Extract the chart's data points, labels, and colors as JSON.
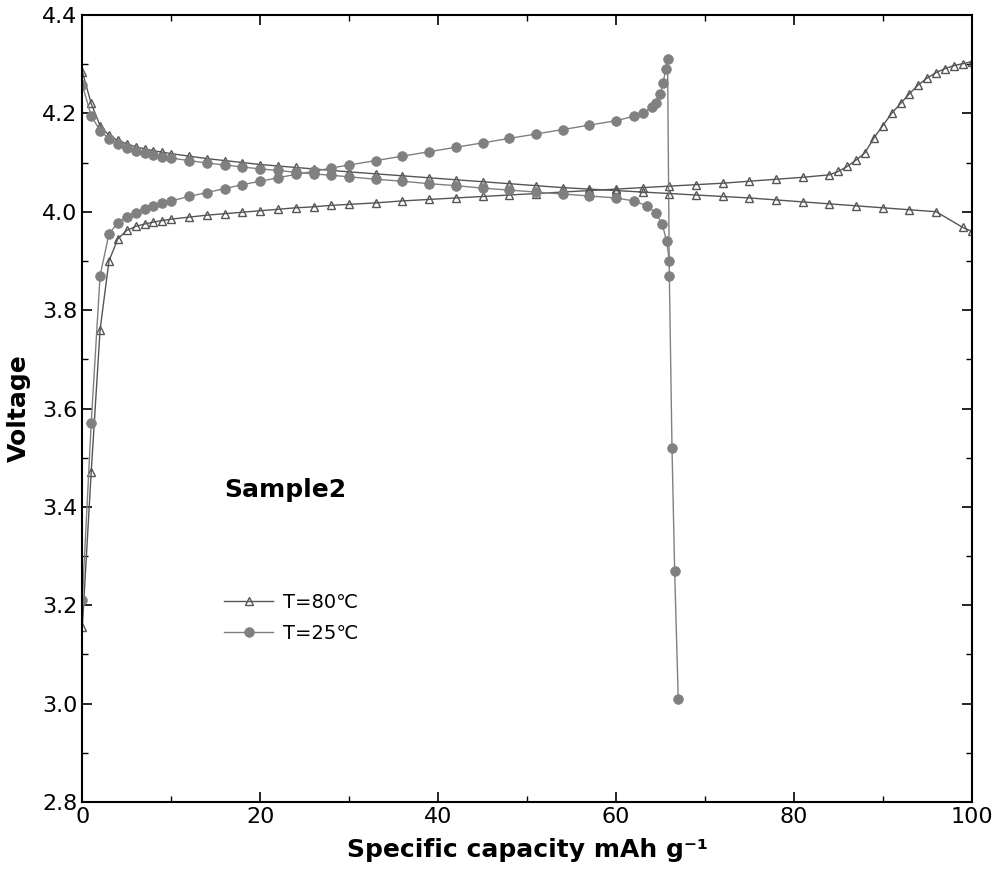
{
  "title": "Sample2",
  "xlabel": "Specific capacity mAh g⁻¹",
  "ylabel": "Voltage",
  "xlim": [
    0,
    100
  ],
  "ylim": [
    2.8,
    4.4
  ],
  "xticks": [
    0,
    20,
    40,
    60,
    80,
    100
  ],
  "yticks": [
    2.8,
    3.0,
    3.2,
    3.4,
    3.6,
    3.8,
    4.0,
    4.2,
    4.4
  ],
  "legend1": "T=80℃",
  "legend2": "T=25℃",
  "color_tri": "#555555",
  "color_circ": "#808080",
  "T80_charge_x": [
    0.0,
    1.0,
    2.0,
    3.0,
    4.0,
    5.0,
    6.0,
    7.0,
    8.0,
    9.0,
    10.0,
    12.0,
    14.0,
    16.0,
    18.0,
    20.0,
    22.0,
    24.0,
    26.0,
    28.0,
    30.0,
    33.0,
    36.0,
    39.0,
    42.0,
    45.0,
    48.0,
    51.0,
    54.0,
    57.0,
    60.0,
    63.0,
    66.0,
    69.0,
    72.0,
    75.0,
    78.0,
    81.0,
    84.0,
    87.0,
    90.0,
    93.0,
    96.0,
    99.0,
    100.0
  ],
  "T80_charge_y": [
    4.285,
    4.22,
    4.175,
    4.155,
    4.145,
    4.138,
    4.132,
    4.128,
    4.124,
    4.121,
    4.118,
    4.113,
    4.108,
    4.104,
    4.1,
    4.096,
    4.093,
    4.09,
    4.087,
    4.084,
    4.081,
    4.077,
    4.073,
    4.069,
    4.065,
    4.061,
    4.057,
    4.053,
    4.049,
    4.046,
    4.043,
    4.04,
    4.037,
    4.034,
    4.031,
    4.028,
    4.024,
    4.02,
    4.016,
    4.012,
    4.008,
    4.004,
    4.0,
    3.968,
    3.96
  ],
  "T80_discharge_x": [
    0.0,
    1.0,
    2.0,
    3.0,
    4.0,
    5.0,
    6.0,
    7.0,
    8.0,
    9.0,
    10.0,
    12.0,
    14.0,
    16.0,
    18.0,
    20.0,
    22.0,
    24.0,
    26.0,
    28.0,
    30.0,
    33.0,
    36.0,
    39.0,
    42.0,
    45.0,
    48.0,
    51.0,
    54.0,
    57.0,
    60.0,
    63.0,
    66.0,
    69.0,
    72.0,
    75.0,
    78.0,
    81.0,
    84.0,
    85.0,
    86.0,
    87.0,
    88.0,
    89.0,
    90.0,
    91.0,
    92.0,
    93.0,
    94.0,
    95.0,
    96.0,
    97.0,
    98.0,
    99.0,
    100.0
  ],
  "T80_discharge_y": [
    3.155,
    3.47,
    3.76,
    3.9,
    3.945,
    3.962,
    3.97,
    3.975,
    3.979,
    3.982,
    3.985,
    3.989,
    3.993,
    3.996,
    3.999,
    4.002,
    4.005,
    4.008,
    4.01,
    4.013,
    4.015,
    4.018,
    4.022,
    4.025,
    4.028,
    4.031,
    4.034,
    4.037,
    4.04,
    4.043,
    4.046,
    4.049,
    4.052,
    4.055,
    4.058,
    4.062,
    4.066,
    4.07,
    4.075,
    4.082,
    4.092,
    4.105,
    4.12,
    4.15,
    4.175,
    4.2,
    4.22,
    4.24,
    4.258,
    4.272,
    4.283,
    4.291,
    4.297,
    4.301,
    4.305
  ],
  "T25_charge_x": [
    0.0,
    1.0,
    2.0,
    3.0,
    4.0,
    5.0,
    6.0,
    7.0,
    8.0,
    9.0,
    10.0,
    12.0,
    14.0,
    16.0,
    18.0,
    20.0,
    22.0,
    24.0,
    26.0,
    28.0,
    30.0,
    33.0,
    36.0,
    39.0,
    42.0,
    45.0,
    48.0,
    51.0,
    54.0,
    57.0,
    60.0,
    62.0,
    63.5,
    64.5,
    65.2,
    65.7,
    66.0
  ],
  "T25_charge_y": [
    4.258,
    4.195,
    4.165,
    4.148,
    4.138,
    4.13,
    4.124,
    4.119,
    4.115,
    4.112,
    4.109,
    4.104,
    4.099,
    4.095,
    4.091,
    4.087,
    4.084,
    4.08,
    4.077,
    4.074,
    4.071,
    4.066,
    4.062,
    4.057,
    4.053,
    4.048,
    4.044,
    4.04,
    4.036,
    4.032,
    4.028,
    4.022,
    4.012,
    3.997,
    3.975,
    3.94,
    3.9
  ],
  "T25_discharge_x": [
    0.0,
    1.0,
    2.0,
    3.0,
    4.0,
    5.0,
    6.0,
    7.0,
    8.0,
    9.0,
    10.0,
    12.0,
    14.0,
    16.0,
    18.0,
    20.0,
    22.0,
    24.0,
    26.0,
    28.0,
    30.0,
    33.0,
    36.0,
    39.0,
    42.0,
    45.0,
    48.0,
    51.0,
    54.0,
    57.0,
    60.0,
    62.0,
    63.0,
    64.0,
    64.5,
    65.0,
    65.3,
    65.6,
    65.8,
    66.0,
    66.3,
    66.6,
    67.0
  ],
  "T25_discharge_y": [
    3.21,
    3.57,
    3.87,
    3.955,
    3.978,
    3.99,
    3.998,
    4.005,
    4.011,
    4.017,
    4.022,
    4.031,
    4.039,
    4.047,
    4.055,
    4.062,
    4.069,
    4.076,
    4.082,
    4.089,
    4.095,
    4.104,
    4.113,
    4.122,
    4.131,
    4.14,
    4.149,
    4.158,
    4.167,
    4.176,
    4.185,
    4.194,
    4.2,
    4.212,
    4.222,
    4.24,
    4.262,
    4.29,
    4.31,
    3.87,
    3.52,
    3.27,
    3.01
  ]
}
